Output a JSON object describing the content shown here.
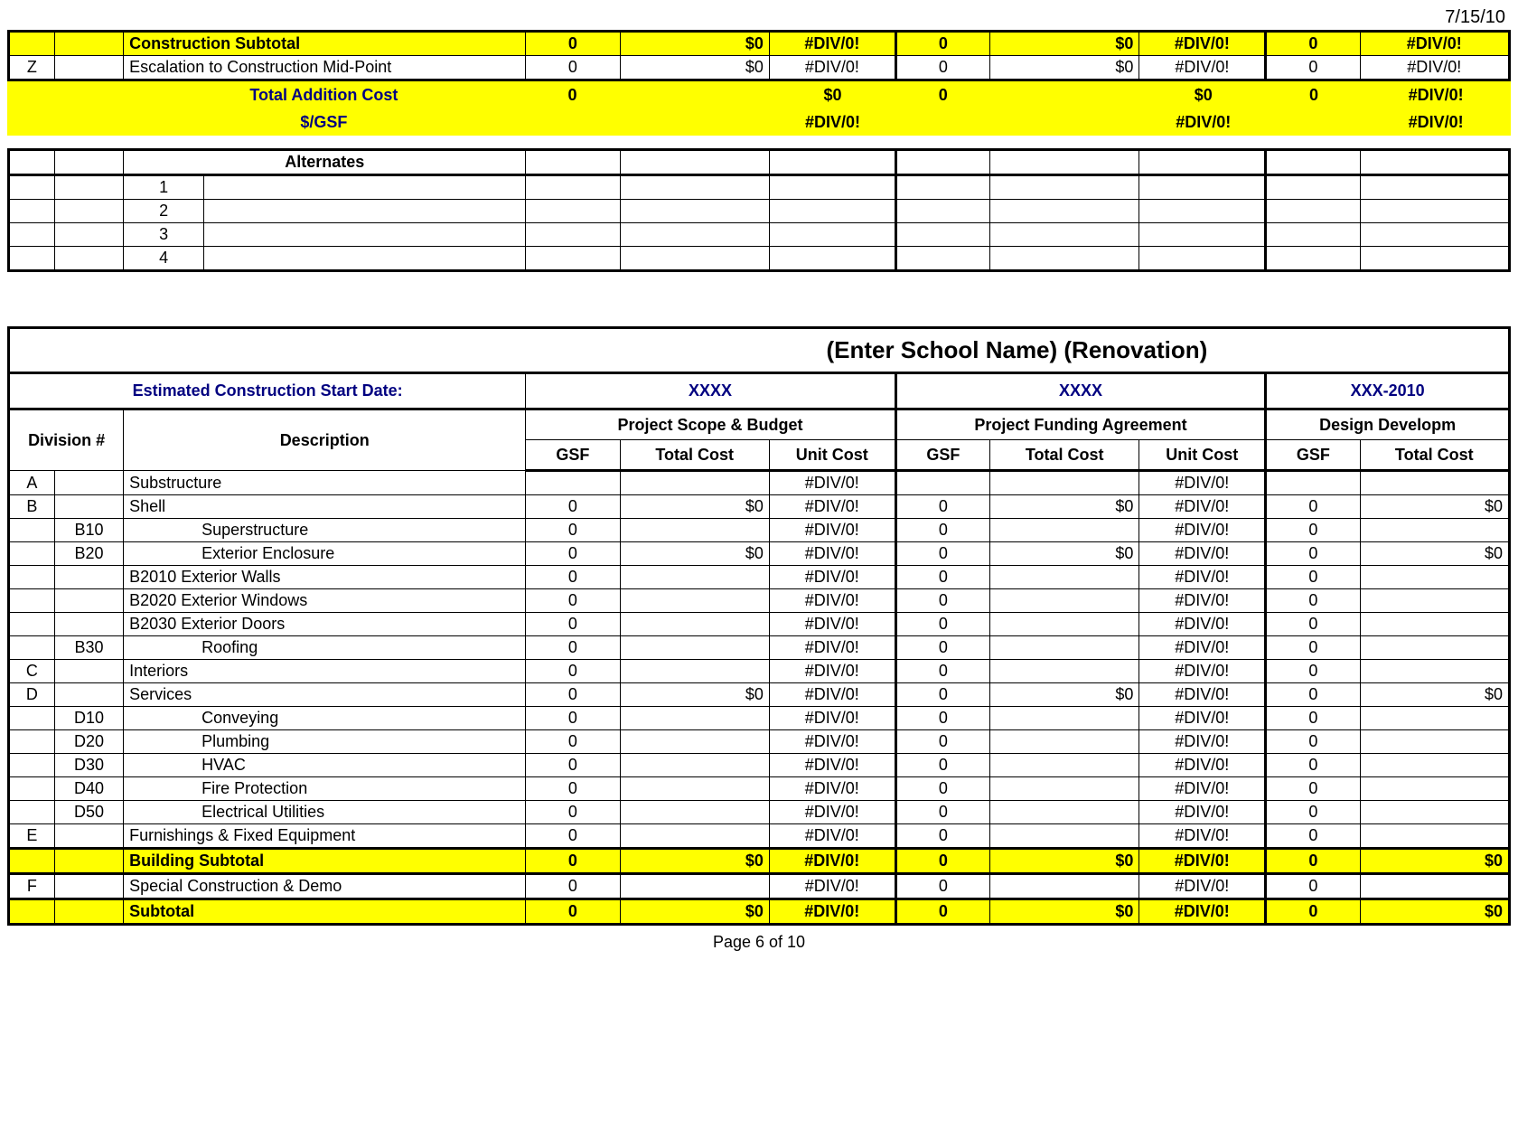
{
  "header_date": "7/15/10",
  "top_table": {
    "construction_subtotal": {
      "label": "Construction Subtotal",
      "v": [
        "0",
        "$0",
        "#DIV/0!",
        "0",
        "$0",
        "#DIV/0!",
        "0",
        "#DIV/0!"
      ]
    },
    "escalation": {
      "code": "Z",
      "label": "Escalation to Construction Mid-Point",
      "v": [
        "0",
        "$0",
        "#DIV/0!",
        "0",
        "$0",
        "#DIV/0!",
        "0",
        "#DIV/0!"
      ]
    },
    "total_addition": {
      "label": "Total Addition Cost",
      "v": [
        "0",
        "$0",
        "0",
        "$0",
        "0",
        "#DIV/0!"
      ]
    },
    "gsf_row": {
      "label": "$/GSF",
      "v": [
        "#DIV/0!",
        "#DIV/0!",
        "#DIV/0!"
      ]
    }
  },
  "alternates": {
    "header": "Alternates",
    "rows": [
      "1",
      "2",
      "3",
      "4"
    ]
  },
  "main_title": "(Enter School Name) (Renovation)",
  "start_date_label": "Estimated Construction Start Date:",
  "phase_dates": [
    "XXXX",
    "XXXX",
    "XXX-2010"
  ],
  "phase_headers": [
    "Project Scope & Budget",
    "Project Funding Agreement",
    "Design Developm"
  ],
  "col_headers": {
    "div": "Division #",
    "desc": "Description",
    "gsf": "GSF",
    "tc": "Total Cost",
    "uc": "Unit Cost"
  },
  "rows": [
    {
      "a": "A",
      "b": "",
      "desc": "Substructure",
      "v": [
        "",
        "",
        "#DIV/0!",
        "",
        "",
        "#DIV/0!",
        "",
        ""
      ]
    },
    {
      "a": "B",
      "b": "",
      "desc": "Shell",
      "v": [
        "0",
        "$0",
        "#DIV/0!",
        "0",
        "$0",
        "#DIV/0!",
        "0",
        "$0"
      ]
    },
    {
      "a": "",
      "b": "B10",
      "desc": "Superstructure",
      "indent": 2,
      "v": [
        "0",
        "",
        "#DIV/0!",
        "0",
        "",
        "#DIV/0!",
        "0",
        ""
      ]
    },
    {
      "a": "",
      "b": "B20",
      "desc": "Exterior Enclosure",
      "indent": 2,
      "v": [
        "0",
        "$0",
        "#DIV/0!",
        "0",
        "$0",
        "#DIV/0!",
        "0",
        "$0"
      ]
    },
    {
      "a": "",
      "b": "",
      "desc": "B2010    Exterior Walls",
      "v": [
        "0",
        "",
        "#DIV/0!",
        "0",
        "",
        "#DIV/0!",
        "0",
        ""
      ]
    },
    {
      "a": "",
      "b": "",
      "desc": "B2020    Exterior Windows",
      "v": [
        "0",
        "",
        "#DIV/0!",
        "0",
        "",
        "#DIV/0!",
        "0",
        ""
      ]
    },
    {
      "a": "",
      "b": "",
      "desc": "B2030    Exterior Doors",
      "v": [
        "0",
        "",
        "#DIV/0!",
        "0",
        "",
        "#DIV/0!",
        "0",
        ""
      ]
    },
    {
      "a": "",
      "b": "B30",
      "desc": "Roofing",
      "indent": 2,
      "v": [
        "0",
        "",
        "#DIV/0!",
        "0",
        "",
        "#DIV/0!",
        "0",
        ""
      ]
    },
    {
      "a": "C",
      "b": "",
      "desc": "Interiors",
      "v": [
        "0",
        "",
        "#DIV/0!",
        "0",
        "",
        "#DIV/0!",
        "0",
        ""
      ]
    },
    {
      "a": "D",
      "b": "",
      "desc": "Services",
      "v": [
        "0",
        "$0",
        "#DIV/0!",
        "0",
        "$0",
        "#DIV/0!",
        "0",
        "$0"
      ]
    },
    {
      "a": "",
      "b": "D10",
      "desc": "Conveying",
      "indent": 2,
      "v": [
        "0",
        "",
        "#DIV/0!",
        "0",
        "",
        "#DIV/0!",
        "0",
        ""
      ]
    },
    {
      "a": "",
      "b": "D20",
      "desc": "Plumbing",
      "indent": 2,
      "v": [
        "0",
        "",
        "#DIV/0!",
        "0",
        "",
        "#DIV/0!",
        "0",
        ""
      ]
    },
    {
      "a": "",
      "b": "D30",
      "desc": "HVAC",
      "indent": 2,
      "v": [
        "0",
        "",
        "#DIV/0!",
        "0",
        "",
        "#DIV/0!",
        "0",
        ""
      ]
    },
    {
      "a": "",
      "b": "D40",
      "desc": "Fire Protection",
      "indent": 2,
      "v": [
        "0",
        "",
        "#DIV/0!",
        "0",
        "",
        "#DIV/0!",
        "0",
        ""
      ]
    },
    {
      "a": "",
      "b": "D50",
      "desc": "Electrical Utilities",
      "indent": 2,
      "v": [
        "0",
        "",
        "#DIV/0!",
        "0",
        "",
        "#DIV/0!",
        "0",
        ""
      ]
    },
    {
      "a": "E",
      "b": "",
      "desc": "Furnishings & Fixed Equipment",
      "v": [
        "0",
        "",
        "#DIV/0!",
        "0",
        "",
        "#DIV/0!",
        "0",
        ""
      ]
    }
  ],
  "building_subtotal": {
    "label": "Building Subtotal",
    "v": [
      "0",
      "$0",
      "#DIV/0!",
      "0",
      "$0",
      "#DIV/0!",
      "0",
      "$0"
    ]
  },
  "special": {
    "a": "F",
    "label": "Special Construction & Demo",
    "v": [
      "0",
      "",
      "#DIV/0!",
      "0",
      "",
      "#DIV/0!",
      "0",
      ""
    ]
  },
  "subtotal": {
    "label": "Subtotal",
    "v": [
      "0",
      "$0",
      "#DIV/0!",
      "0",
      "$0",
      "#DIV/0!",
      "0",
      "$0"
    ]
  },
  "footer": "Page 6 of 10",
  "colors": {
    "highlight": "#ffff00",
    "heading_text": "#000080"
  }
}
